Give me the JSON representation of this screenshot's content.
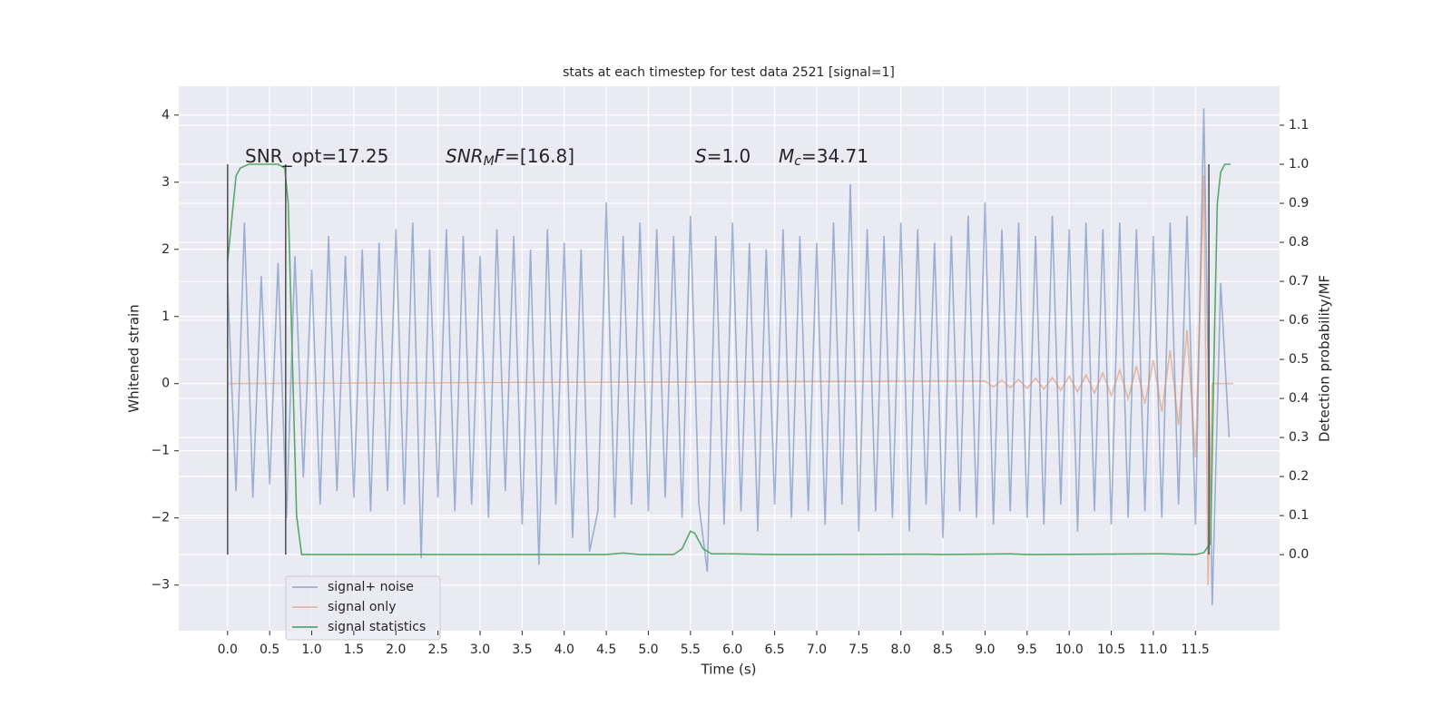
{
  "chart_data": {
    "type": "line",
    "title": "stats at each timestep for test data 2521 [signal=1]",
    "xlabel": "Time (s)",
    "ylabel": "Whitened strain",
    "y2label": "Detection probability/MF",
    "xlim": [
      -0.58,
      12.5
    ],
    "ylim": [
      -3.68,
      4.43
    ],
    "y2lim": [
      -0.195,
      1.2
    ],
    "grid": true,
    "xticks": [
      {
        "value": 0,
        "label": "0.0"
      },
      {
        "value": 0.5,
        "label": "0.5"
      },
      {
        "value": 1,
        "label": "1.0"
      },
      {
        "value": 1.5,
        "label": "1.5"
      },
      {
        "value": 2,
        "label": "2.0"
      },
      {
        "value": 2.5,
        "label": "2.5"
      },
      {
        "value": 3,
        "label": "3.0"
      },
      {
        "value": 3.5,
        "label": "3.5"
      },
      {
        "value": 4,
        "label": "4.0"
      },
      {
        "value": 4.5,
        "label": "4.5"
      },
      {
        "value": 5,
        "label": "5.0"
      },
      {
        "value": 5.5,
        "label": "5.5"
      },
      {
        "value": 6,
        "label": "6.0"
      },
      {
        "value": 6.5,
        "label": "6.5"
      },
      {
        "value": 7,
        "label": "7.0"
      },
      {
        "value": 7.5,
        "label": "7.5"
      },
      {
        "value": 8,
        "label": "8.0"
      },
      {
        "value": 8.5,
        "label": "8.5"
      },
      {
        "value": 9,
        "label": "9.0"
      },
      {
        "value": 9.5,
        "label": "9.5"
      },
      {
        "value": 10,
        "label": "10.0"
      },
      {
        "value": 10.5,
        "label": "10.5"
      },
      {
        "value": 11,
        "label": "11.0"
      },
      {
        "value": 11.5,
        "label": "11.5"
      }
    ],
    "yticks": [
      {
        "value": -3,
        "label": "−3"
      },
      {
        "value": -2,
        "label": "−2"
      },
      {
        "value": -1,
        "label": "−1"
      },
      0,
      1,
      2,
      3,
      4
    ],
    "y2ticks": [
      {
        "value": 0,
        "label": "0.0"
      },
      {
        "value": 0.1,
        "label": "0.1"
      },
      {
        "value": 0.2,
        "label": "0.2"
      },
      {
        "value": 0.3,
        "label": "0.3"
      },
      {
        "value": 0.4,
        "label": "0.4"
      },
      {
        "value": 0.5,
        "label": "0.5"
      },
      {
        "value": 0.6,
        "label": "0.6"
      },
      {
        "value": 0.7,
        "label": "0.7"
      },
      {
        "value": 0.8,
        "label": "0.8"
      },
      {
        "value": 0.9,
        "label": "0.9"
      },
      {
        "value": 1.0,
        "label": "1.0"
      },
      {
        "value": 1.1,
        "label": "1.1"
      }
    ],
    "series": [
      {
        "name": "signal+ noise",
        "color": "#4c72b0",
        "alpha": 0.5,
        "x": [
          0,
          0.1,
          0.2,
          0.3,
          0.4,
          0.5,
          0.6,
          0.7,
          0.8,
          0.9,
          1,
          1.1,
          1.2,
          1.3,
          1.4,
          1.5,
          1.6,
          1.7,
          1.8,
          1.9,
          2,
          2.1,
          2.2,
          2.3,
          2.4,
          2.5,
          2.6,
          2.7,
          2.8,
          2.9,
          3,
          3.1,
          3.2,
          3.3,
          3.4,
          3.5,
          3.6,
          3.7,
          3.8,
          3.9,
          4,
          4.1,
          4.2,
          4.3,
          4.4,
          4.5,
          4.6,
          4.7,
          4.8,
          4.9,
          5,
          5.1,
          5.2,
          5.3,
          5.4,
          5.5,
          5.6,
          5.7,
          5.8,
          5.9,
          6,
          6.1,
          6.2,
          6.3,
          6.4,
          6.5,
          6.6,
          6.7,
          6.8,
          6.9,
          7,
          7.1,
          7.2,
          7.3,
          7.4,
          7.5,
          7.6,
          7.7,
          7.8,
          7.9,
          8,
          8.1,
          8.2,
          8.3,
          8.4,
          8.5,
          8.6,
          8.7,
          8.8,
          8.9,
          9,
          9.1,
          9.2,
          9.3,
          9.4,
          9.5,
          9.6,
          9.7,
          9.8,
          9.9,
          10,
          10.1,
          10.2,
          10.3,
          10.4,
          10.5,
          10.6,
          10.7,
          10.8,
          10.9,
          11,
          11.1,
          11.2,
          11.3,
          11.4,
          11.5,
          11.6,
          11.7,
          11.8,
          11.9
        ],
        "values": [
          1.5,
          -1.6,
          2.4,
          -1.7,
          1.6,
          -1.5,
          1.8,
          -2.0,
          1.9,
          -1.4,
          1.7,
          -1.8,
          2.2,
          -1.6,
          1.9,
          -1.7,
          2.0,
          -1.9,
          2.1,
          -1.6,
          2.3,
          -1.8,
          2.4,
          -2.6,
          2.0,
          -1.7,
          2.3,
          -1.9,
          2.2,
          -1.8,
          1.9,
          -2.0,
          2.3,
          -1.6,
          2.2,
          -2.1,
          2.0,
          -2.7,
          2.3,
          -1.8,
          2.1,
          -2.3,
          2.0,
          -2.5,
          -1.9,
          2.7,
          -2.0,
          2.2,
          -1.8,
          2.4,
          -1.9,
          2.3,
          -1.7,
          2.2,
          -2.0,
          2.5,
          -1.8,
          -2.8,
          2.2,
          -2.1,
          2.4,
          -1.9,
          2.1,
          -2.2,
          2.0,
          -1.8,
          2.3,
          -2.0,
          2.2,
          -1.9,
          2.1,
          -2.1,
          2.4,
          -1.8,
          2.97,
          -2.2,
          2.3,
          -1.9,
          2.2,
          -2.0,
          2.4,
          -2.2,
          2.3,
          -1.8,
          2.1,
          -2.3,
          2.2,
          -1.9,
          2.5,
          -2.0,
          2.7,
          -2.1,
          2.3,
          -1.9,
          2.4,
          -2.0,
          2.2,
          -2.1,
          2.5,
          -1.8,
          2.3,
          -2.2,
          2.4,
          -1.9,
          2.3,
          -2.1,
          2.4,
          -2.0,
          2.3,
          -1.9,
          2.2,
          -2.0,
          2.4,
          -1.8,
          2.5,
          -2.1,
          4.1,
          -3.3,
          1.5,
          -0.8
        ]
      },
      {
        "name": "signal only",
        "color": "#dd8452",
        "alpha": 0.5,
        "x": [
          0,
          9,
          9.1,
          9.2,
          9.3,
          9.4,
          9.5,
          9.6,
          9.7,
          9.8,
          9.9,
          10,
          10.1,
          10.2,
          10.3,
          10.4,
          10.5,
          10.6,
          10.7,
          10.8,
          10.9,
          11,
          11.1,
          11.2,
          11.3,
          11.4,
          11.5,
          11.6,
          11.65,
          11.7,
          11.95
        ],
        "values": [
          0,
          0.04,
          -0.05,
          0.05,
          -0.06,
          0.06,
          -0.07,
          0.08,
          -0.08,
          0.09,
          -0.1,
          0.11,
          -0.12,
          0.13,
          -0.14,
          0.16,
          -0.18,
          0.2,
          -0.23,
          0.26,
          -0.3,
          0.35,
          -0.42,
          0.5,
          -0.62,
          0.8,
          -1.1,
          3.1,
          -3.0,
          0,
          0
        ]
      },
      {
        "name": "signal statistics",
        "color": "#55a868",
        "alpha": 1,
        "axis": "y2",
        "x": [
          0,
          0.1,
          0.15,
          0.25,
          0.6,
          0.68,
          0.72,
          0.77,
          0.82,
          0.88,
          1,
          4.5,
          4.7,
          4.9,
          5.3,
          5.4,
          5.5,
          5.55,
          5.65,
          5.75,
          6,
          6.5,
          8.3,
          8.5,
          9.3,
          9.5,
          11.1,
          11.5,
          11.6,
          11.68,
          11.72,
          11.76,
          11.8,
          11.85,
          11.92
        ],
        "values": [
          0.75,
          0.97,
          0.99,
          1.0,
          1.0,
          0.99,
          0.9,
          0.5,
          0.1,
          0.0,
          0.0,
          0.0,
          0.004,
          0.0,
          0.0,
          0.015,
          0.06,
          0.055,
          0.015,
          0.002,
          0.002,
          0.0,
          0.001,
          0.0,
          0.002,
          0.0,
          0.002,
          0.0,
          0.005,
          0.03,
          0.5,
          0.9,
          0.98,
          1.0,
          1.0
        ]
      }
    ],
    "vlines": {
      "x": [
        0,
        0.69,
        11.66
      ],
      "ymin": 0,
      "ymax": 1.0,
      "color": "#555555"
    },
    "annotations": [
      [
        {
          "text": "SNR_opt=17.25"
        }
      ],
      [
        {
          "text": "SNR",
          "italic": true
        },
        {
          "text": "M",
          "italic": true,
          "sub": true
        },
        {
          "text": "F",
          "italic": true
        },
        {
          "text": "=[16.8]"
        }
      ],
      [
        {
          "text": "S",
          "italic": true
        },
        {
          "text": "=1.0"
        }
      ],
      [
        {
          "text": "M",
          "italic": true
        },
        {
          "text": "c",
          "italic": true,
          "sub": true
        },
        {
          "text": "=34.71"
        }
      ]
    ]
  }
}
